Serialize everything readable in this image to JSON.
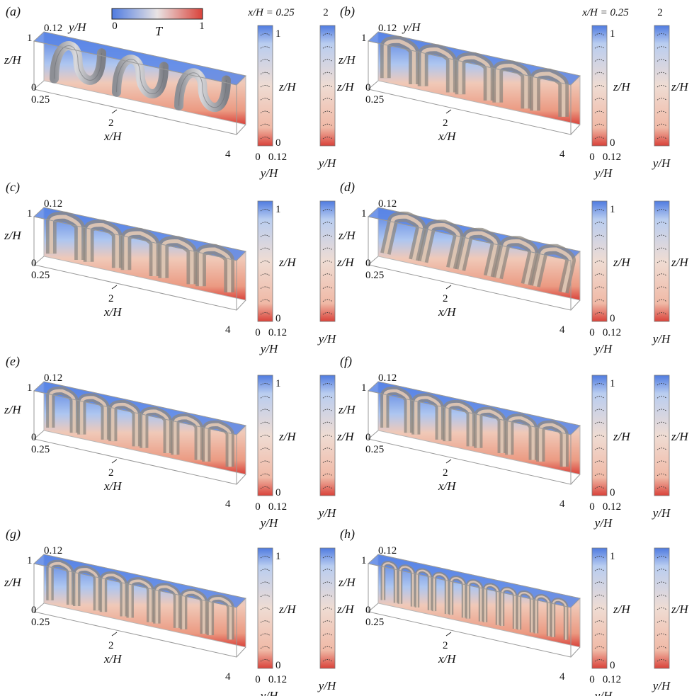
{
  "colorbar": {
    "label": "T",
    "min_label": "0",
    "max_label": "1",
    "low_color": "#4f7be0",
    "mid_color": "#e9e4e4",
    "high_color": "#d9423a"
  },
  "header": {
    "slice_title": "x/H = 0.25",
    "slice2_label": "2"
  },
  "panels": [
    {
      "tag": "(a)",
      "n_rolls": 3,
      "style": "sinuous"
    },
    {
      "tag": "(b)",
      "n_rolls": 5,
      "style": "box"
    },
    {
      "tag": "(c)",
      "n_rolls": 5,
      "style": "box"
    },
    {
      "tag": "(d)",
      "n_rolls": 5,
      "style": "skew"
    },
    {
      "tag": "(e)",
      "n_rolls": 6,
      "style": "box"
    },
    {
      "tag": "(f)",
      "n_rolls": 6,
      "style": "box"
    },
    {
      "tag": "(g)",
      "n_rolls": 7,
      "style": "box"
    },
    {
      "tag": "(h)",
      "n_rolls": 11,
      "style": "box"
    }
  ],
  "axes": {
    "y_top": "0.12",
    "y_mid": "0.25",
    "z_label": "z/H",
    "z_one": "1",
    "z_zero": "0",
    "x_label": "x/H",
    "x_mid": "2",
    "x_end": "4",
    "y_label": "y/H",
    "y_label_top": "y/H",
    "slice_y0": "0",
    "slice_y1": "0.12"
  }
}
